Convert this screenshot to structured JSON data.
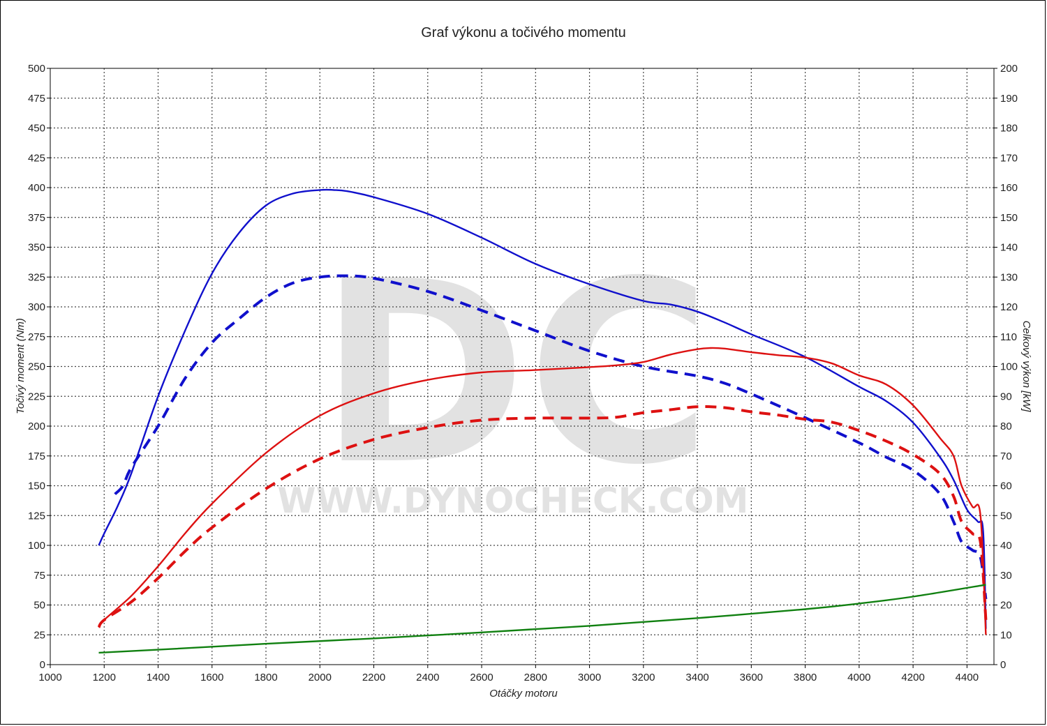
{
  "chart_data": {
    "type": "line",
    "title": "Graf výkonu a točivého momentu",
    "watermark": {
      "logo": "DC",
      "url": "WWW.DYNOCHECK.COM"
    },
    "xlabel": "Otáčky motoru",
    "ylabel_left": "Točivý moment (Nm)",
    "ylabel_right": "Celkový výkon [kW]",
    "xlim": [
      1000,
      4500
    ],
    "x_ticks": [
      1000,
      1200,
      1400,
      1600,
      1800,
      2000,
      2200,
      2400,
      2600,
      2800,
      3000,
      3200,
      3400,
      3600,
      3800,
      4000,
      4200,
      4400
    ],
    "ylim_left": [
      0,
      500
    ],
    "y_left_ticks": [
      0,
      25,
      50,
      75,
      100,
      125,
      150,
      175,
      200,
      225,
      250,
      275,
      300,
      325,
      350,
      375,
      400,
      425,
      450,
      475,
      500
    ],
    "ylim_right": [
      0,
      200
    ],
    "y_right_ticks": [
      0,
      10,
      20,
      30,
      40,
      50,
      60,
      70,
      80,
      90,
      100,
      110,
      120,
      130,
      140,
      150,
      160,
      170,
      180,
      190,
      200
    ],
    "grid": true,
    "colors": {
      "torque": "#1010cc",
      "power": "#dd1111",
      "loss": "#108010"
    },
    "series": [
      {
        "key": "torque_tuned",
        "axis": "left",
        "color": "#1010cc",
        "style": "solid",
        "x": [
          1180,
          1200,
          1250,
          1300,
          1400,
          1500,
          1600,
          1700,
          1800,
          1900,
          2000,
          2050,
          2100,
          2200,
          2400,
          2600,
          2800,
          3000,
          3200,
          3300,
          3400,
          3500,
          3600,
          3800,
          4000,
          4100,
          4200,
          4300,
          4350,
          4400,
          4440,
          4460,
          4470
        ],
        "y": [
          100,
          110,
          133,
          160,
          225,
          280,
          328,
          362,
          385,
          395,
          398,
          398,
          397,
          392,
          378,
          358,
          336,
          319,
          305,
          302,
          296,
          287,
          277,
          258,
          233,
          221,
          203,
          174,
          155,
          130,
          120,
          112,
          30
        ]
      },
      {
        "key": "torque_stock",
        "axis": "left",
        "color": "#1010cc",
        "style": "dashed",
        "x": [
          1240,
          1270,
          1300,
          1400,
          1500,
          1600,
          1700,
          1800,
          1900,
          2000,
          2100,
          2200,
          2400,
          2600,
          2800,
          3000,
          3200,
          3400,
          3500,
          3600,
          3800,
          4000,
          4100,
          4200,
          4300,
          4350,
          4380,
          4420,
          4450,
          4470
        ],
        "y": [
          143,
          150,
          165,
          200,
          240,
          270,
          290,
          308,
          320,
          325,
          326,
          324,
          313,
          297,
          280,
          263,
          250,
          242,
          236,
          227,
          207,
          186,
          174,
          163,
          143,
          120,
          103,
          96,
          90,
          55
        ]
      },
      {
        "key": "power_tuned",
        "axis": "right",
        "color": "#dd1111",
        "style": "solid",
        "x": [
          1180,
          1200,
          1300,
          1400,
          1500,
          1600,
          1800,
          2000,
          2200,
          2400,
          2600,
          2800,
          3000,
          3100,
          3200,
          3300,
          3400,
          3450,
          3500,
          3600,
          3700,
          3800,
          3900,
          4000,
          4100,
          4200,
          4300,
          4350,
          4380,
          4420,
          4450,
          4470
        ],
        "y": [
          12.5,
          15,
          23,
          33,
          44,
          54,
          71,
          83.5,
          91,
          95.5,
          98,
          98.8,
          99.8,
          100.4,
          101.5,
          104,
          105.8,
          106.2,
          106,
          104.8,
          103.8,
          103,
          101,
          97,
          94,
          87,
          76,
          70,
          60,
          53,
          50,
          10
        ]
      },
      {
        "key": "power_stock",
        "axis": "right",
        "color": "#dd1111",
        "style": "dashed",
        "x": [
          1180,
          1200,
          1300,
          1400,
          1500,
          1600,
          1800,
          2000,
          2200,
          2400,
          2600,
          2800,
          3000,
          3100,
          3200,
          3300,
          3400,
          3500,
          3600,
          3700,
          3800,
          3900,
          4000,
          4100,
          4200,
          4300,
          4350,
          4380,
          4420,
          4450,
          4470
        ],
        "y": [
          12.5,
          15,
          21,
          29,
          38,
          46,
          59,
          69,
          75.5,
          79.5,
          82,
          82.7,
          82.7,
          83,
          84.5,
          85.5,
          86.5,
          86.2,
          84.8,
          83.7,
          82.3,
          81.3,
          78.5,
          75,
          70.5,
          64,
          56.5,
          48,
          44,
          41,
          15
        ]
      },
      {
        "key": "loss",
        "axis": "right",
        "color": "#108010",
        "style": "solid",
        "x": [
          1180,
          1400,
          1800,
          2200,
          2600,
          3000,
          3400,
          3800,
          4000,
          4200,
          4470
        ],
        "y": [
          4,
          5,
          7,
          8.8,
          10.8,
          13,
          15.6,
          18.6,
          20.5,
          22.8,
          26.8
        ]
      }
    ]
  }
}
